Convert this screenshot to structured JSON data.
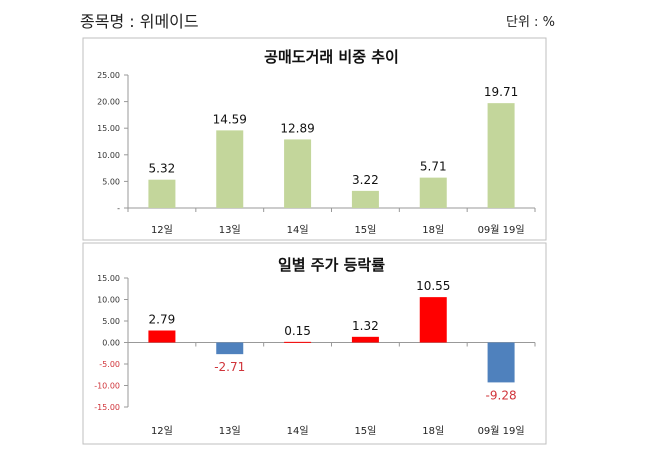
{
  "header": {
    "stock_label": "종목명 : 위메이드",
    "unit_label": "단위 : %"
  },
  "colors": {
    "short_bar": "#c3d69b",
    "up_bar": "#ff0000",
    "down_bar": "#4f81bd",
    "neg_text": "#d0343a"
  },
  "chart_data": [
    {
      "type": "bar",
      "title": "공매도거래 비중 추이",
      "categories": [
        "12일",
        "13일",
        "14일",
        "15일",
        "18일",
        "09월 19일"
      ],
      "values": [
        5.32,
        14.59,
        12.89,
        3.22,
        5.71,
        19.71
      ],
      "value_labels": [
        "5.32",
        "14.59",
        "12.89",
        "3.22",
        "5.71",
        "19.71"
      ],
      "ylim": [
        0,
        25
      ],
      "yticks": [
        0,
        5,
        10,
        15,
        20,
        25
      ],
      "ytick_labels": [
        "-",
        "5.00",
        "10.00",
        "15.00",
        "20.00",
        "25.00"
      ],
      "xlabel": "",
      "ylabel": ""
    },
    {
      "type": "bar",
      "title": "일별 주가 등락률",
      "categories": [
        "12일",
        "13일",
        "14일",
        "15일",
        "18일",
        "09월 19일"
      ],
      "values": [
        2.79,
        -2.71,
        0.15,
        1.32,
        10.55,
        -9.28
      ],
      "value_labels": [
        "2.79",
        "-2.71",
        "0.15",
        "1.32",
        "10.55",
        "-9.28"
      ],
      "ylim": [
        -15,
        15
      ],
      "yticks": [
        -15,
        -10,
        -5,
        0,
        5,
        10,
        15
      ],
      "ytick_labels": [
        "-15.00",
        "-10.00",
        "-5.00",
        "0.00",
        "5.00",
        "10.00",
        "15.00"
      ],
      "xlabel": "",
      "ylabel": ""
    }
  ]
}
